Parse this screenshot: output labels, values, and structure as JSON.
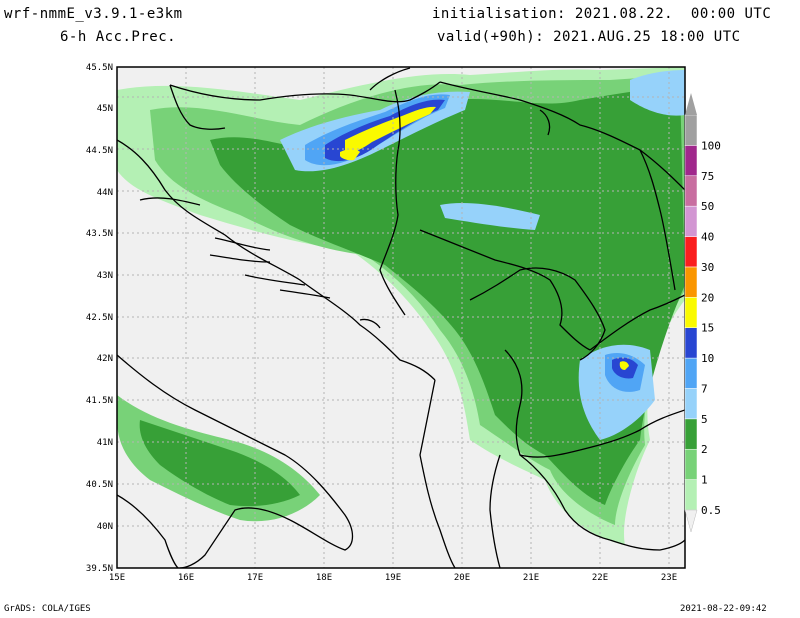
{
  "header": {
    "model": "wrf-nmmE_v3.9.1-e3km",
    "field": "6-h Acc.Prec.",
    "init": "initialisation: 2021.08.22.  00:00 UTC",
    "valid": "valid(+90h): 2021.AUG.25 18:00 UTC"
  },
  "footer": {
    "left": "GrADS: COLA/IGES",
    "right": "2021-08-22-09:42"
  },
  "map": {
    "lat_labels": [
      "45.5N",
      "45N",
      "44.5N",
      "44N",
      "43.5N",
      "43N",
      "42.5N",
      "42N",
      "41.5N",
      "41N",
      "40.5N",
      "40N",
      "39.5N"
    ],
    "lon_labels": [
      "15E",
      "16E",
      "17E",
      "18E",
      "19E",
      "20E",
      "21E",
      "22E",
      "23E"
    ],
    "lon_range": [
      15,
      23.25
    ],
    "lat_range": [
      39.5,
      45.5
    ],
    "land_color": "#f0f0f0",
    "border_color": "#000000"
  },
  "colorbar": {
    "levels": [
      "0.5",
      "1",
      "2",
      "5",
      "7",
      "10",
      "15",
      "20",
      "30",
      "40",
      "50",
      "75",
      "100"
    ],
    "colors": [
      "#b4f0b4",
      "#78d278",
      "#37a037",
      "#96d2fa",
      "#50a5f5",
      "#2846d2",
      "#fafa00",
      "#fa9600",
      "#fa1e1e",
      "#d296d2",
      "#c86ea0",
      "#a0288c",
      "#a0a0a0"
    ]
  }
}
